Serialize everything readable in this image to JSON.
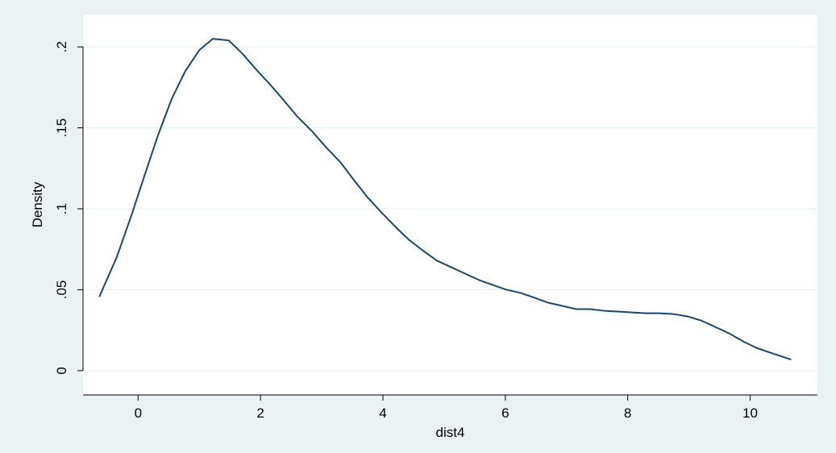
{
  "chart_data": {
    "type": "line",
    "title": "",
    "xlabel": "dist4",
    "ylabel": "Density",
    "xlim": [
      -0.9,
      11.1
    ],
    "ylim": [
      -0.015,
      0.22
    ],
    "x_ticks": [
      {
        "value": 0,
        "label": "0"
      },
      {
        "value": 2,
        "label": "2"
      },
      {
        "value": 4,
        "label": "4"
      },
      {
        "value": 6,
        "label": "6"
      },
      {
        "value": 8,
        "label": "8"
      },
      {
        "value": 10,
        "label": "10"
      }
    ],
    "y_ticks": [
      {
        "value": 0,
        "label": "0"
      },
      {
        "value": 0.05,
        "label": ".05"
      },
      {
        "value": 0.1,
        "label": ".1"
      },
      {
        "value": 0.15,
        "label": ".15"
      },
      {
        "value": 0.2,
        "label": ".2"
      }
    ],
    "grid": "horizontal",
    "legend": "none",
    "colors": {
      "line": "#1a476f",
      "grid": "#eaf2f3",
      "plot_background": "#ffffff",
      "outer_background": "#eaf2f3"
    },
    "series": [
      {
        "values_x": [
          -0.63,
          -0.35,
          -0.1,
          0.1,
          0.33,
          0.55,
          0.77,
          1.0,
          1.22,
          1.48,
          1.7,
          1.93,
          2.15,
          2.38,
          2.6,
          2.84,
          3.07,
          3.3,
          3.52,
          3.75,
          3.97,
          4.2,
          4.42,
          4.66,
          4.88,
          5.11,
          5.34,
          5.57,
          5.79,
          6.02,
          6.25,
          6.48,
          6.7,
          6.93,
          7.16,
          7.39,
          7.61,
          7.84,
          8.07,
          8.3,
          8.52,
          8.75,
          8.98,
          9.2,
          9.43,
          9.66,
          9.89,
          10.11,
          10.34,
          10.66
        ],
        "values_y": [
          0.046,
          0.07,
          0.097,
          0.12,
          0.146,
          0.168,
          0.185,
          0.198,
          0.205,
          0.204,
          0.196,
          0.186,
          0.177,
          0.167,
          0.157,
          0.148,
          0.138,
          0.129,
          0.118,
          0.107,
          0.098,
          0.089,
          0.081,
          0.074,
          0.068,
          0.064,
          0.06,
          0.056,
          0.053,
          0.05,
          0.048,
          0.045,
          0.042,
          0.04,
          0.038,
          0.038,
          0.037,
          0.0365,
          0.036,
          0.0355,
          0.0355,
          0.035,
          0.0335,
          0.031,
          0.027,
          0.023,
          0.018,
          0.014,
          0.011,
          0.007
        ]
      }
    ]
  }
}
